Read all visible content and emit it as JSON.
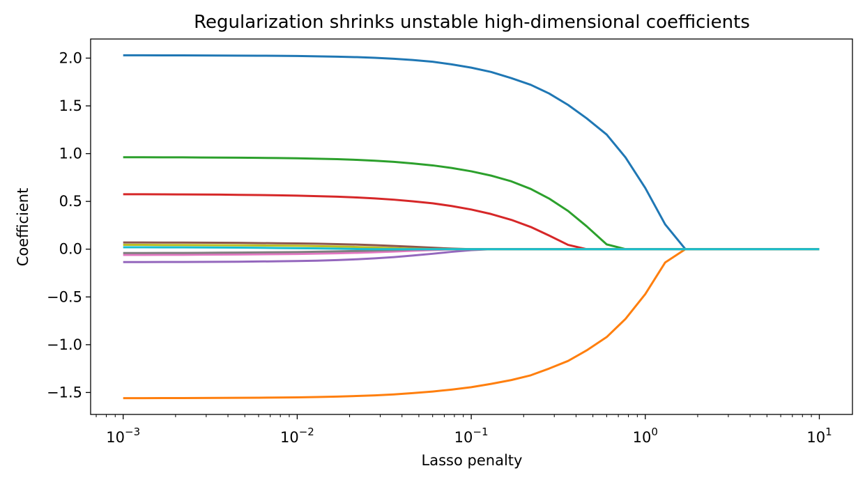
{
  "chart_data": {
    "type": "line",
    "title": "Regularization shrinks unstable high-dimensional coefficients",
    "xlabel": "Lasso penalty",
    "ylabel": "Coefficient",
    "xscale": "log",
    "xlim": [
      0.00065,
      15.5
    ],
    "ylim": [
      -1.73,
      2.2
    ],
    "x_ticks": [
      {
        "value": 0.001,
        "base": "10",
        "exp": "−3"
      },
      {
        "value": 0.01,
        "base": "10",
        "exp": "−2"
      },
      {
        "value": 0.1,
        "base": "10",
        "exp": "−1"
      },
      {
        "value": 1,
        "base": "10",
        "exp": "0"
      },
      {
        "value": 10,
        "base": "10",
        "exp": "1"
      }
    ],
    "y_ticks": [
      {
        "value": 2.0,
        "label": "2.0"
      },
      {
        "value": 1.5,
        "label": "1.5"
      },
      {
        "value": 1.0,
        "label": "1.0"
      },
      {
        "value": 0.5,
        "label": "0.5"
      },
      {
        "value": 0.0,
        "label": "0.0"
      },
      {
        "value": -0.5,
        "label": "−0.5"
      },
      {
        "value": -1.0,
        "label": "−1.0"
      },
      {
        "value": -1.5,
        "label": "−1.5"
      }
    ],
    "grid": false,
    "legend": "none",
    "x": [
      0.001,
      0.0013,
      0.0017,
      0.0022,
      0.0028,
      0.0036,
      0.0046,
      0.006,
      0.0077,
      0.01,
      0.013,
      0.017,
      0.022,
      0.028,
      0.036,
      0.046,
      0.06,
      0.077,
      0.1,
      0.13,
      0.17,
      0.22,
      0.28,
      0.36,
      0.46,
      0.6,
      0.77,
      1.0,
      1.3,
      1.7,
      2.2,
      2.8,
      3.6,
      4.6,
      6.0,
      7.7,
      10.0
    ],
    "series": [
      {
        "color": "#1f77b4",
        "values": [
          2.03,
          2.03,
          2.029,
          2.029,
          2.028,
          2.027,
          2.026,
          2.025,
          2.024,
          2.022,
          2.019,
          2.015,
          2.01,
          2.003,
          1.993,
          1.98,
          1.962,
          1.935,
          1.9,
          1.855,
          1.79,
          1.72,
          1.63,
          1.51,
          1.37,
          1.2,
          0.96,
          0.64,
          0.26,
          0.0,
          0.0,
          0.0,
          0.0,
          0.0,
          0.0,
          0.0,
          0.0
        ]
      },
      {
        "color": "#ff7f0e",
        "values": [
          -1.56,
          -1.56,
          -1.559,
          -1.559,
          -1.558,
          -1.557,
          -1.556,
          -1.555,
          -1.553,
          -1.551,
          -1.548,
          -1.543,
          -1.537,
          -1.53,
          -1.52,
          -1.507,
          -1.49,
          -1.47,
          -1.445,
          -1.41,
          -1.37,
          -1.32,
          -1.25,
          -1.17,
          -1.06,
          -0.92,
          -0.73,
          -0.47,
          -0.14,
          0.0,
          0.0,
          0.0,
          0.0,
          0.0,
          0.0,
          0.0,
          0.0
        ]
      },
      {
        "color": "#2ca02c",
        "values": [
          0.962,
          0.962,
          0.961,
          0.961,
          0.96,
          0.959,
          0.958,
          0.956,
          0.954,
          0.951,
          0.947,
          0.942,
          0.935,
          0.926,
          0.914,
          0.898,
          0.877,
          0.85,
          0.815,
          0.77,
          0.71,
          0.63,
          0.53,
          0.4,
          0.24,
          0.05,
          0.0,
          0.0,
          0.0,
          0.0,
          0.0,
          0.0,
          0.0,
          0.0,
          0.0,
          0.0,
          0.0
        ]
      },
      {
        "color": "#d62728",
        "values": [
          0.575,
          0.575,
          0.574,
          0.573,
          0.572,
          0.571,
          0.569,
          0.567,
          0.564,
          0.56,
          0.555,
          0.549,
          0.541,
          0.531,
          0.518,
          0.501,
          0.48,
          0.452,
          0.415,
          0.368,
          0.307,
          0.232,
          0.143,
          0.045,
          0.0,
          0.0,
          0.0,
          0.0,
          0.0,
          0.0,
          0.0,
          0.0,
          0.0,
          0.0,
          0.0,
          0.0,
          0.0
        ]
      },
      {
        "color": "#9467bd",
        "values": [
          -0.135,
          -0.135,
          -0.134,
          -0.134,
          -0.133,
          -0.132,
          -0.131,
          -0.129,
          -0.127,
          -0.124,
          -0.12,
          -0.114,
          -0.106,
          -0.096,
          -0.083,
          -0.067,
          -0.048,
          -0.028,
          -0.01,
          0.0,
          0.0,
          0.0,
          0.0,
          0.0,
          0.0,
          0.0,
          0.0,
          0.0,
          0.0,
          0.0,
          0.0,
          0.0,
          0.0,
          0.0,
          0.0,
          0.0,
          0.0
        ]
      },
      {
        "color": "#8c564b",
        "values": [
          0.07,
          0.07,
          0.069,
          0.069,
          0.068,
          0.067,
          0.066,
          0.064,
          0.062,
          0.06,
          0.057,
          0.053,
          0.048,
          0.042,
          0.034,
          0.025,
          0.015,
          0.006,
          0.0,
          0.0,
          0.0,
          0.0,
          0.0,
          0.0,
          0.0,
          0.0,
          0.0,
          0.0,
          0.0,
          0.0,
          0.0,
          0.0,
          0.0,
          0.0,
          0.0,
          0.0,
          0.0
        ]
      },
      {
        "color": "#e377c2",
        "values": [
          -0.06,
          -0.06,
          -0.059,
          -0.059,
          -0.058,
          -0.057,
          -0.056,
          -0.054,
          -0.052,
          -0.05,
          -0.047,
          -0.043,
          -0.038,
          -0.032,
          -0.025,
          -0.017,
          -0.009,
          -0.003,
          0.0,
          0.0,
          0.0,
          0.0,
          0.0,
          0.0,
          0.0,
          0.0,
          0.0,
          0.0,
          0.0,
          0.0,
          0.0,
          0.0,
          0.0,
          0.0,
          0.0,
          0.0,
          0.0
        ]
      },
      {
        "color": "#7f7f7f",
        "values": [
          -0.04,
          -0.04,
          -0.039,
          -0.039,
          -0.038,
          -0.037,
          -0.036,
          -0.034,
          -0.032,
          -0.03,
          -0.027,
          -0.023,
          -0.019,
          -0.014,
          -0.009,
          -0.004,
          -0.001,
          0.0,
          0.0,
          0.0,
          0.0,
          0.0,
          0.0,
          0.0,
          0.0,
          0.0,
          0.0,
          0.0,
          0.0,
          0.0,
          0.0,
          0.0,
          0.0,
          0.0,
          0.0,
          0.0,
          0.0
        ]
      },
      {
        "color": "#bcbd22",
        "values": [
          0.045,
          0.045,
          0.044,
          0.044,
          0.043,
          0.042,
          0.041,
          0.039,
          0.037,
          0.035,
          0.032,
          0.028,
          0.023,
          0.017,
          0.011,
          0.005,
          0.001,
          0.0,
          0.0,
          0.0,
          0.0,
          0.0,
          0.0,
          0.0,
          0.0,
          0.0,
          0.0,
          0.0,
          0.0,
          0.0,
          0.0,
          0.0,
          0.0,
          0.0,
          0.0,
          0.0,
          0.0
        ]
      },
      {
        "color": "#17becf",
        "values": [
          0.02,
          0.02,
          0.019,
          0.019,
          0.018,
          0.017,
          0.016,
          0.014,
          0.012,
          0.01,
          0.008,
          0.005,
          0.002,
          0.0,
          0.0,
          0.0,
          0.0,
          0.0,
          0.0,
          0.0,
          0.0,
          0.0,
          0.0,
          0.0,
          0.0,
          0.0,
          0.0,
          0.0,
          0.0,
          0.0,
          0.0,
          0.0,
          0.0,
          0.0,
          0.0,
          0.0,
          0.0
        ]
      }
    ]
  }
}
